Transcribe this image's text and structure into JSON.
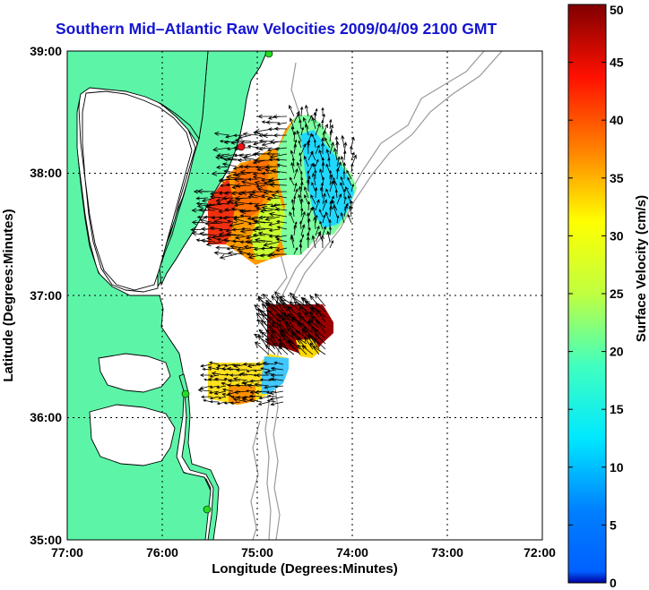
{
  "title": "Southern Mid–Atlantic Raw Velocities 2009/04/09 2100 GMT",
  "colors": {
    "title": "#1414d2",
    "land": "#5cf5a8",
    "ocean": "#ffffff",
    "coast": "#000000",
    "bathymetry": "#9a9a9a",
    "station": "#22dd22",
    "station_alt": "#ee1111"
  },
  "map": {
    "xlabel": "Longitude (Degrees:Minutes)",
    "ylabel": "Latitude (Degrees:Minutes)",
    "x_ticks": [
      "77:00",
      "76:00",
      "75:00",
      "74:00",
      "73:00",
      "72:00"
    ],
    "y_ticks": [
      "39:00",
      "38:00",
      "37:00",
      "36:00",
      "35:00"
    ],
    "lon_range": [
      -77,
      -72
    ],
    "lat_range": [
      35,
      39
    ],
    "grid": true
  },
  "colorbar": {
    "label": "Surface Velocity (cm/s)",
    "ticks": [
      "0",
      "5",
      "10",
      "15",
      "20",
      "25",
      "30",
      "35",
      "40",
      "45",
      "50"
    ],
    "range": [
      0,
      50
    ],
    "colormap": "jet"
  },
  "stations": [
    {
      "lon": -74.85,
      "lat": 38.98,
      "color": "green"
    },
    {
      "lon": -75.15,
      "lat": 38.2,
      "color": "red"
    },
    {
      "lon": -75.75,
      "lat": 36.2,
      "color": "green"
    },
    {
      "lon": -75.55,
      "lat": 35.26,
      "color": "green"
    }
  ],
  "velocity_regions": [
    {
      "name": "upper",
      "lon": [
        -75.55,
        -74.0
      ],
      "lat": [
        37.3,
        38.6
      ],
      "speed_range_cms": [
        5,
        38
      ]
    },
    {
      "name": "lower-north",
      "lon": [
        -74.95,
        -74.2
      ],
      "lat": [
        36.45,
        36.9
      ],
      "speed_range_cms": [
        20,
        50
      ]
    },
    {
      "name": "lower-south",
      "lon": [
        -75.5,
        -74.6
      ],
      "lat": [
        36.0,
        36.45
      ],
      "speed_range_cms": [
        8,
        25
      ]
    }
  ]
}
